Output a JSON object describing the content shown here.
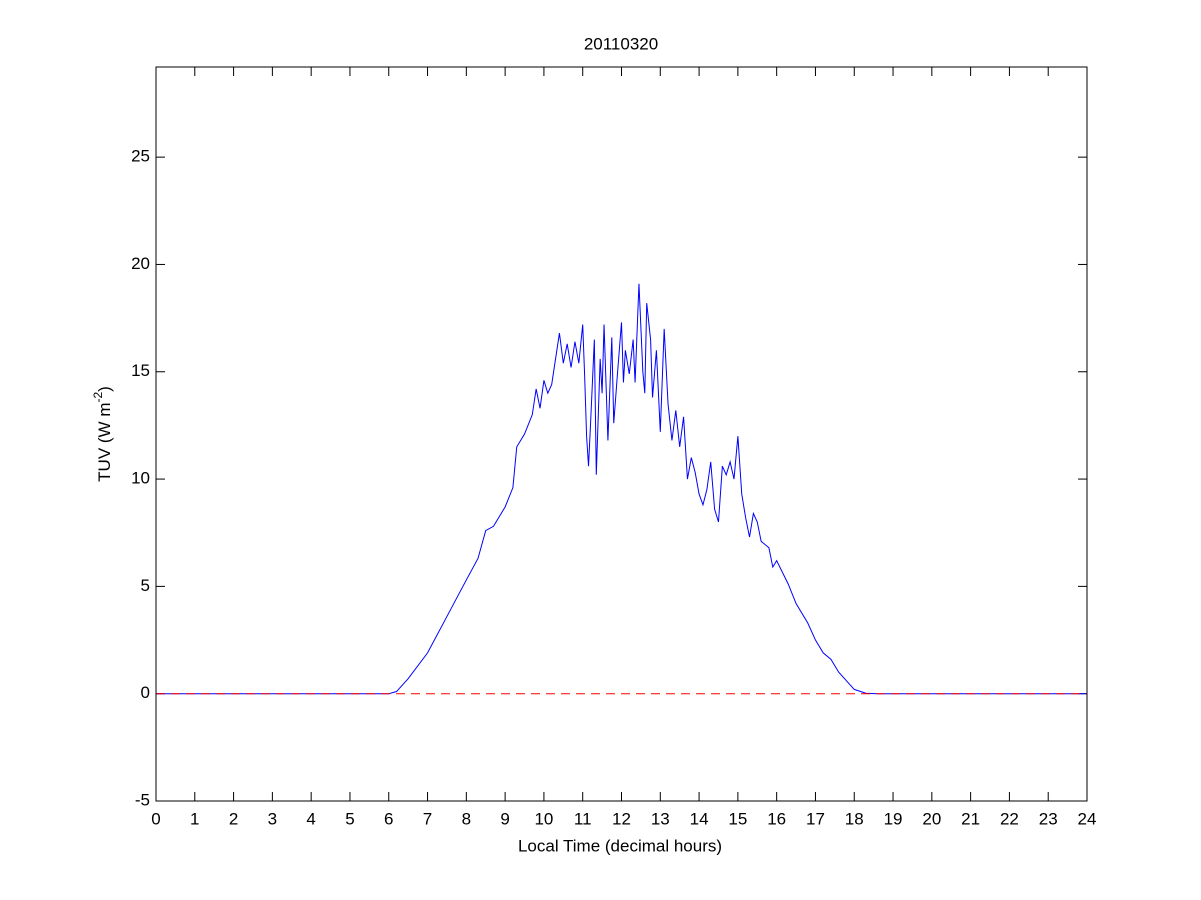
{
  "chart_data": {
    "type": "line",
    "title": "20110320",
    "xlabel": "Local Time (decimal hours)",
    "ylabel": [
      "TUV (W m",
      "-2",
      ")"
    ],
    "xlim": [
      0,
      24
    ],
    "xticks": [
      0,
      1,
      2,
      3,
      4,
      5,
      6,
      7,
      8,
      9,
      10,
      11,
      12,
      13,
      14,
      15,
      16,
      17,
      18,
      19,
      20,
      21,
      22,
      23,
      24
    ],
    "ylim": [
      -5,
      29.2
    ],
    "yticks": [
      -5,
      0,
      5,
      10,
      15,
      20,
      25
    ],
    "reference_line": {
      "value": 0,
      "color": "#ff0000",
      "dash": true
    },
    "series": [
      {
        "color": "#0000ff",
        "x": [
          0,
          6,
          6.2,
          6.5,
          7,
          7.5,
          8,
          8.3,
          8.5,
          8.7,
          8.9,
          9,
          9.2,
          9.3,
          9.5,
          9.7,
          9.8,
          9.9,
          10,
          10.1,
          10.2,
          10.3,
          10.4,
          10.5,
          10.6,
          10.7,
          10.8,
          10.9,
          11,
          11.05,
          11.1,
          11.15,
          11.2,
          11.3,
          11.35,
          11.45,
          11.5,
          11.55,
          11.65,
          11.75,
          11.8,
          11.9,
          12,
          12.05,
          12.1,
          12.2,
          12.3,
          12.35,
          12.45,
          12.55,
          12.6,
          12.65,
          12.75,
          12.8,
          12.9,
          13,
          13.1,
          13.2,
          13.3,
          13.4,
          13.5,
          13.6,
          13.7,
          13.8,
          13.9,
          14,
          14.1,
          14.2,
          14.3,
          14.4,
          14.5,
          14.6,
          14.7,
          14.8,
          14.9,
          15,
          15.1,
          15.2,
          15.3,
          15.4,
          15.5,
          15.6,
          15.8,
          15.9,
          16,
          16.3,
          16.5,
          16.8,
          17,
          17.2,
          17.4,
          17.6,
          17.8,
          18,
          18.3,
          18.6,
          24
        ],
        "values": [
          0,
          0,
          0.1,
          0.7,
          1.9,
          3.6,
          5.3,
          6.3,
          7.6,
          7.8,
          8.4,
          8.7,
          9.6,
          11.5,
          12.1,
          13.0,
          14.2,
          13.3,
          14.6,
          14.0,
          14.4,
          15.6,
          16.8,
          15.4,
          16.3,
          15.2,
          16.4,
          15.4,
          17.2,
          14.8,
          12.0,
          10.6,
          12.5,
          16.5,
          10.2,
          15.6,
          14.0,
          17.2,
          11.8,
          16.6,
          12.6,
          15.0,
          17.3,
          14.5,
          16.0,
          14.9,
          16.5,
          14.5,
          19.1,
          15.0,
          14.0,
          18.2,
          16.5,
          13.8,
          16.0,
          12.2,
          17.0,
          13.5,
          11.8,
          13.2,
          11.5,
          12.9,
          10.0,
          11.0,
          10.3,
          9.3,
          8.8,
          9.5,
          10.8,
          8.6,
          8.0,
          10.6,
          10.2,
          10.8,
          10.0,
          12.0,
          9.3,
          8.2,
          7.3,
          8.4,
          8.0,
          7.1,
          6.8,
          5.9,
          6.2,
          5.1,
          4.2,
          3.3,
          2.5,
          1.9,
          1.6,
          1.0,
          0.6,
          0.2,
          0.02,
          0,
          0
        ]
      }
    ]
  }
}
